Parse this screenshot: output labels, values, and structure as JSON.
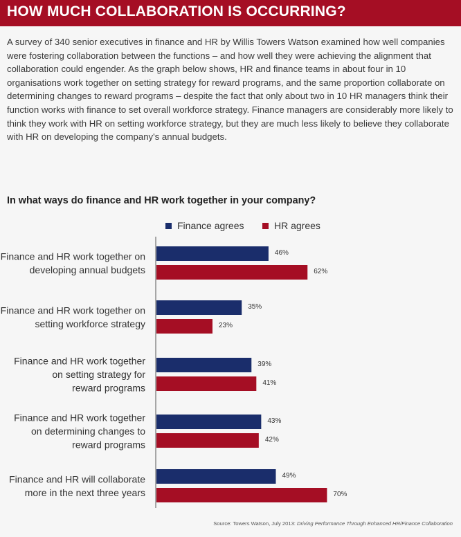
{
  "header": {
    "title": "HOW MUCH COLLABORATION IS OCCURRING?"
  },
  "intro_text": "A survey of 340 senior executives in finance and HR by Willis Towers Watson examined how well companies were fostering collaboration between the functions – and how well they were achieving the alignment that collaboration could engender. As the graph below shows, HR and finance teams in about four in 10 organisations work together on setting strategy for reward programs, and the same proportion collaborate on determining changes to reward programs – despite the fact that only about two in 10 HR managers think their function works with finance to set overall workforce strategy. Finance managers are considerably more likely to think they work with HR on setting workforce strategy, but they are much less likely to believe they collaborate with HR on developing the company's annual budgets.",
  "source": {
    "prefix": "Source: Towers Watson, July 2013: ",
    "title": "Driving Performance Through Enhanced HR/Finance Collaboration"
  },
  "colors": {
    "banner": "#a50e24",
    "finance": "#1a2d6b",
    "hr": "#a50e24"
  },
  "chart_data": {
    "type": "bar",
    "orientation": "horizontal",
    "title": "In what ways do finance and HR work together in your company?",
    "legend_position": "top",
    "xlim": [
      0,
      100
    ],
    "value_suffix": "%",
    "categories": [
      [
        "Finance and HR work together on",
        "developing annual budgets"
      ],
      [
        "Finance and HR work together on",
        "setting workforce strategy"
      ],
      [
        "Finance and HR work together",
        "on setting strategy for",
        "reward programs"
      ],
      [
        "Finance and HR work together",
        "on determining changes to",
        "reward programs"
      ],
      [
        "Finance and HR will collaborate",
        "more in the next three years"
      ]
    ],
    "series": [
      {
        "name": "Finance agrees",
        "color": "#1a2d6b",
        "values": [
          46,
          35,
          39,
          43,
          49
        ]
      },
      {
        "name": "HR agrees",
        "color": "#a50e24",
        "values": [
          62,
          23,
          41,
          42,
          70
        ]
      }
    ]
  }
}
